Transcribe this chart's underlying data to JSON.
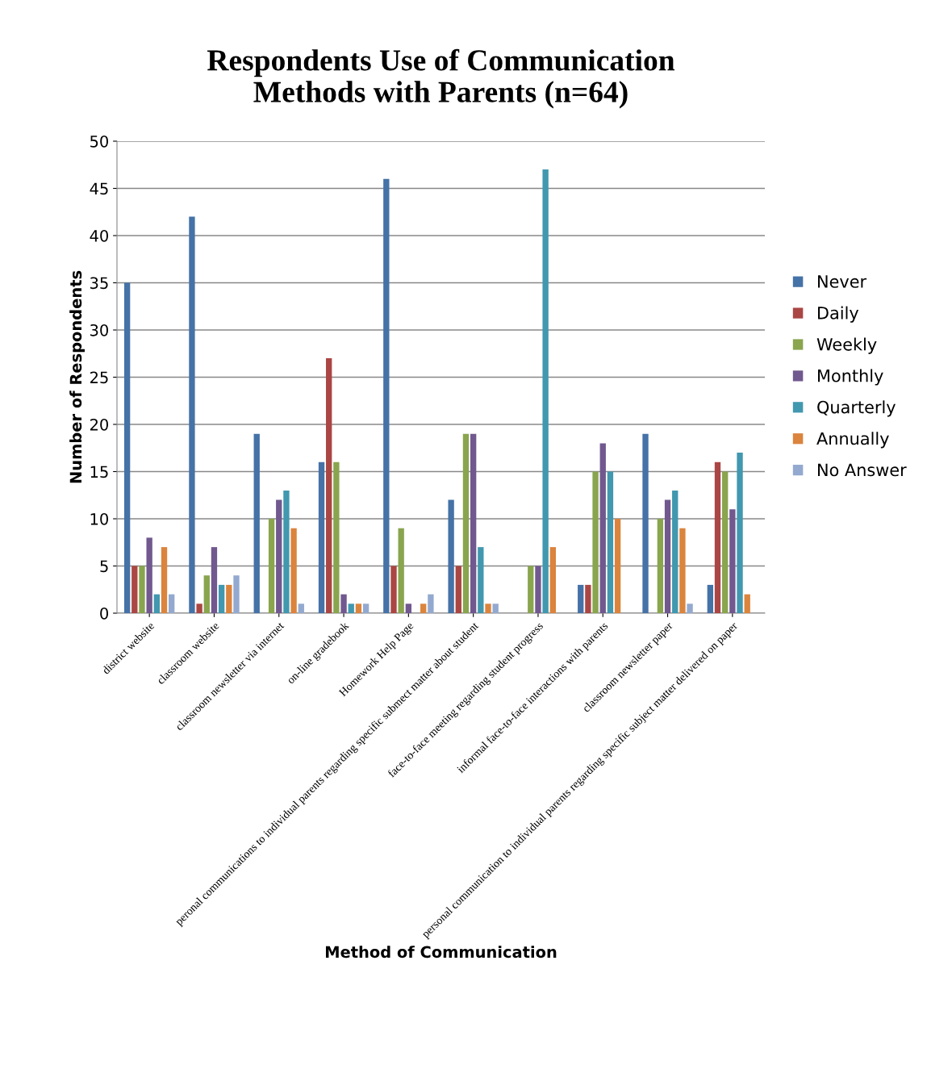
{
  "chart_data": {
    "type": "bar",
    "title": "Respondents Use of Communication\nMethods with Parents (n=64)",
    "xlabel": "Method of Communication",
    "ylabel": "Number of Respondents",
    "categories": [
      "district website",
      "classroom website",
      "classroom newsletter via internet",
      "on-line gradebook",
      "Homework Help Page",
      "peronal communications to individual parents regarding specific submect matter about student",
      "face-to-face meeting regarding student progress",
      "informal face-to-face interactions with parents",
      "classroom newsletter paper",
      "personal communication to individual parents regarding specific subject matter delivered on paper"
    ],
    "series": [
      {
        "name": "Never",
        "color": "#4572a7",
        "values": [
          35,
          42,
          19,
          16,
          46,
          12,
          0,
          3,
          19,
          3
        ]
      },
      {
        "name": "Daily",
        "color": "#aa4643",
        "values": [
          5,
          1,
          0,
          27,
          5,
          5,
          0,
          3,
          0,
          16
        ]
      },
      {
        "name": "Weekly",
        "color": "#89a54e",
        "values": [
          5,
          4,
          10,
          16,
          9,
          19,
          5,
          15,
          10,
          15
        ]
      },
      {
        "name": "Monthly",
        "color": "#71588f",
        "values": [
          8,
          7,
          12,
          2,
          1,
          19,
          5,
          18,
          12,
          11
        ]
      },
      {
        "name": "Quarterly",
        "color": "#4198af",
        "values": [
          2,
          3,
          13,
          1,
          0,
          7,
          47,
          15,
          13,
          17
        ]
      },
      {
        "name": "Annually",
        "color": "#db843d",
        "values": [
          7,
          3,
          9,
          1,
          1,
          1,
          7,
          10,
          9,
          2
        ]
      },
      {
        "name": "No Answer",
        "color": "#93a9cf",
        "values": [
          2,
          4,
          1,
          1,
          2,
          1,
          0,
          0,
          1,
          0
        ]
      }
    ],
    "ylim": [
      0,
      50
    ],
    "yticks": [
      0,
      5,
      10,
      15,
      20,
      25,
      30,
      35,
      40,
      45,
      50
    ],
    "grid": "y",
    "legend": "right"
  }
}
